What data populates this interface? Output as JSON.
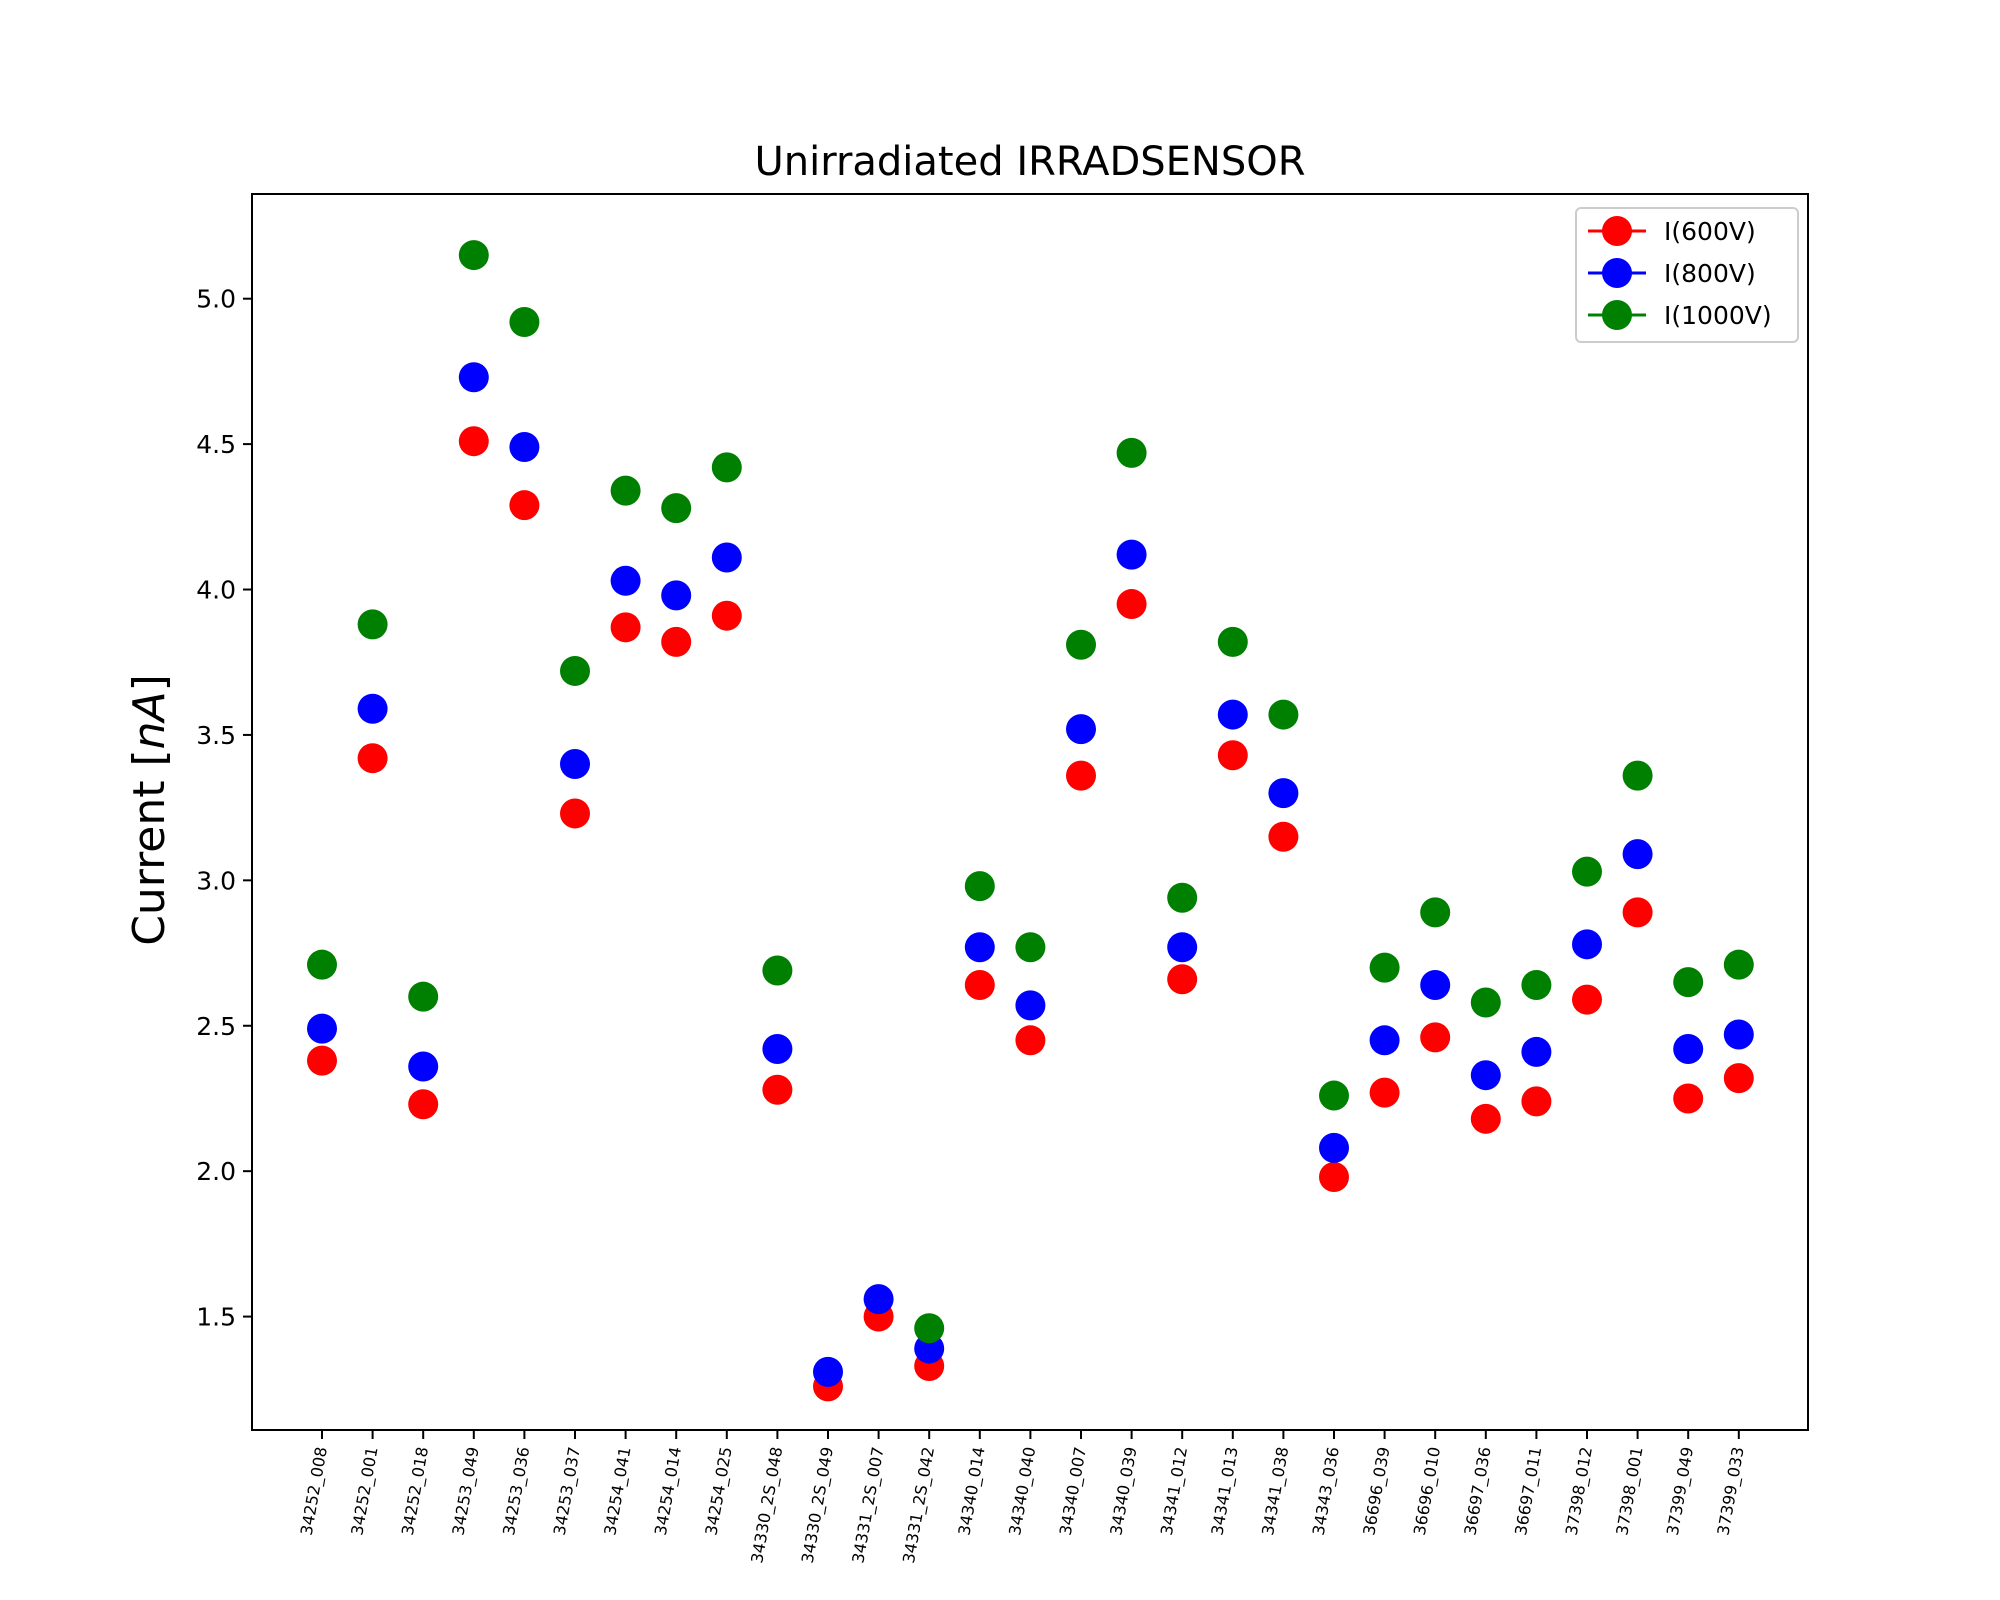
{
  "chart_data": {
    "type": "scatter",
    "title": "Unirradiated IRRADSENSOR",
    "ylabel_main": "Current [",
    "ylabel_unit": "nA",
    "ylabel_close": "]",
    "xlabel": "",
    "ylim": [
      1.11,
      5.36
    ],
    "yticks": [
      "1.5",
      "2.0",
      "2.5",
      "3.0",
      "3.5",
      "4.0",
      "4.5",
      "5.0"
    ],
    "legend_position": "top-right",
    "grid": false,
    "categories": [
      "34252_008",
      "34252_001",
      "34252_018",
      "34253_049",
      "34253_036",
      "34253_037",
      "34254_041",
      "34254_014",
      "34254_025",
      "34330_2S_048",
      "34330_2S_049",
      "34331_2S_007",
      "34331_2S_042",
      "34340_014",
      "34340_040",
      "34340_007",
      "34340_039",
      "34341_012",
      "34341_013",
      "34341_038",
      "34343_036",
      "36696_039",
      "36696_010",
      "36697_036",
      "36697_011",
      "37398_012",
      "37398_001",
      "37399_049",
      "37399_033"
    ],
    "series": [
      {
        "name": "I(600V)",
        "color": "#ff0000",
        "values": [
          2.38,
          3.42,
          2.23,
          4.51,
          4.29,
          3.23,
          3.87,
          3.82,
          3.91,
          2.28,
          1.26,
          1.5,
          1.33,
          2.64,
          2.45,
          3.36,
          3.95,
          2.66,
          3.43,
          3.15,
          1.98,
          2.27,
          2.46,
          2.18,
          2.24,
          2.59,
          2.89,
          2.25,
          2.32
        ]
      },
      {
        "name": "I(800V)",
        "color": "#0000ff",
        "values": [
          2.49,
          3.59,
          2.36,
          4.73,
          4.49,
          3.4,
          4.03,
          3.98,
          4.11,
          2.42,
          1.31,
          1.56,
          1.39,
          2.77,
          2.57,
          3.52,
          4.12,
          2.77,
          3.57,
          3.3,
          2.08,
          2.45,
          2.64,
          2.33,
          2.41,
          2.78,
          3.09,
          2.42,
          2.47
        ]
      },
      {
        "name": "I(1000V)",
        "color": "#008000",
        "values": [
          2.71,
          3.88,
          2.6,
          5.15,
          4.92,
          3.72,
          4.34,
          4.28,
          4.42,
          2.69,
          null,
          null,
          1.46,
          2.98,
          2.77,
          3.81,
          4.47,
          2.94,
          3.82,
          3.57,
          2.26,
          2.7,
          2.89,
          2.58,
          2.64,
          3.03,
          3.36,
          2.65,
          2.71
        ]
      }
    ]
  }
}
